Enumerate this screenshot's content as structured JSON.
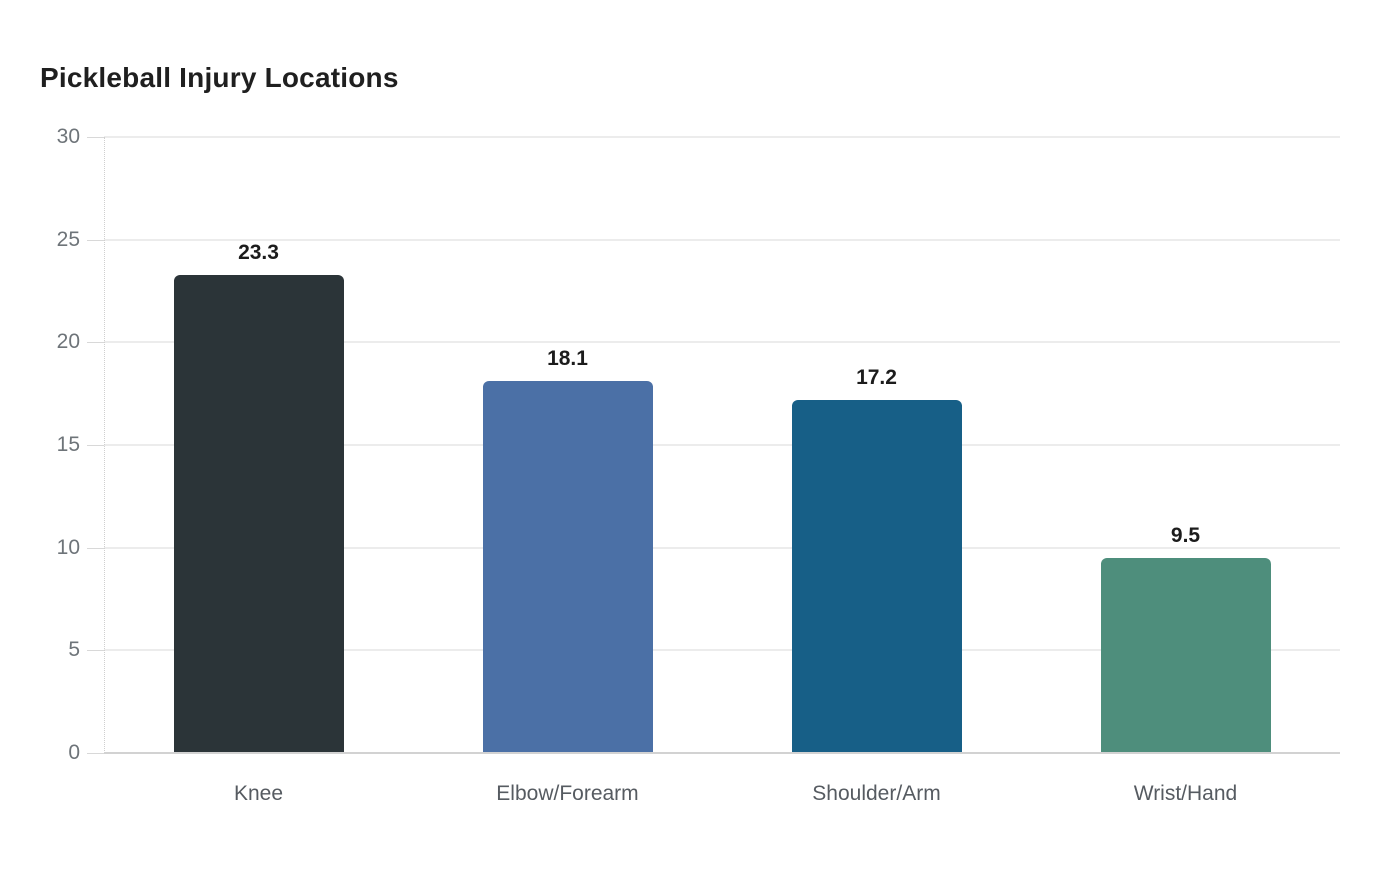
{
  "chart_data": {
    "type": "bar",
    "title": "Pickleball Injury Locations",
    "categories": [
      "Knee",
      "Elbow/Forearm",
      "Shoulder/Arm",
      "Wrist/Hand"
    ],
    "values": [
      23.3,
      18.1,
      17.2,
      9.5
    ],
    "value_labels": [
      "23.3",
      "18.1",
      "17.2",
      "9.5"
    ],
    "bar_colors": [
      "#2b3438",
      "#4b70a6",
      "#175f87",
      "#4e8e7c"
    ],
    "xlabel": "",
    "ylabel": "",
    "ylim": [
      0,
      30
    ],
    "yticks": [
      0,
      5,
      10,
      15,
      20,
      25,
      30
    ],
    "grid": true,
    "legend_position": "none"
  },
  "style": {
    "background": "#ffffff",
    "title_color": "#1f1f1f",
    "grid_line_color": "#ececec",
    "baseline_color": "#d2d2d2",
    "axis_dotted_color": "#cfcfcf",
    "tick_label_color": "#6e7479",
    "category_label_color": "#565b61",
    "value_label_color": "#1c1c1c"
  }
}
